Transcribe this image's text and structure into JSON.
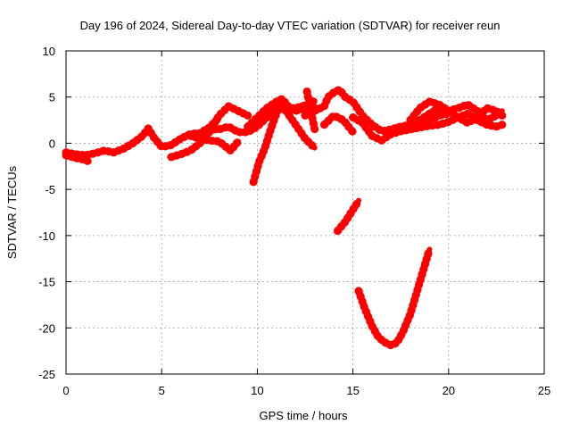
{
  "chart_data": {
    "type": "line",
    "title": "Day 196 of 2024, Sidereal Day-to-day VTEC variation (SDTVAR) for receiver reun",
    "xlabel": "GPS time / hours",
    "ylabel": "SDTVAR / TECUs",
    "xlim": [
      0,
      25
    ],
    "ylim": [
      -25,
      10
    ],
    "xticks": [
      0,
      5,
      10,
      15,
      20,
      25
    ],
    "yticks": [
      -25,
      -20,
      -15,
      -10,
      -5,
      0,
      5,
      10
    ],
    "xtick_labels": [
      "0",
      "5",
      "10",
      "15",
      "20",
      "25"
    ],
    "ytick_labels": [
      "-25",
      "-20",
      "-15",
      "-10",
      "-5",
      "0",
      "5",
      "10"
    ],
    "grid": true,
    "series_color": "#ff0000",
    "series": [
      {
        "name": "s1",
        "x": [
          0,
          0.5,
          1,
          1.5,
          2,
          2.5,
          3,
          3.5,
          4,
          4.3,
          4.6,
          5,
          5.5,
          6,
          6.5,
          7,
          7.5,
          8
        ],
        "y": [
          -1,
          -1.2,
          -1.3,
          -1.1,
          -0.8,
          -1,
          -0.6,
          0,
          0.8,
          1.6,
          0.6,
          -0.4,
          -0.2,
          0.5,
          1,
          1.1,
          1.7,
          2.8
        ]
      },
      {
        "name": "s2",
        "x": [
          0,
          0.5,
          1,
          1.2
        ],
        "y": [
          -1.3,
          -1.6,
          -1.8,
          -2
        ]
      },
      {
        "name": "s3",
        "x": [
          5.5,
          6,
          6.5,
          7,
          7.3,
          7.6,
          8,
          8.5,
          9,
          9.5,
          10,
          10.5,
          11,
          11.5,
          12,
          12.5,
          13
        ],
        "y": [
          -1.5,
          -1.2,
          -0.8,
          0,
          0.8,
          1.5,
          1.5,
          1.8,
          1.2,
          1.2,
          1.8,
          2.8,
          4.2,
          4,
          3.5,
          3.8,
          4
        ]
      },
      {
        "name": "s4",
        "x": [
          7.5,
          8,
          8.5,
          9,
          9.5
        ],
        "y": [
          1.2,
          3,
          4,
          3.5,
          3
        ]
      },
      {
        "name": "s5",
        "x": [
          6.5,
          7,
          7.5,
          8,
          8.3,
          8.6,
          9
        ],
        "y": [
          0.8,
          0.5,
          0.3,
          0.2,
          -0.3,
          -0.8,
          0.2
        ]
      },
      {
        "name": "s6",
        "x": [
          9.5,
          10,
          10.5,
          11,
          11.3,
          11.7,
          12,
          12.5,
          13
        ],
        "y": [
          1.8,
          2.8,
          3.8,
          4.5,
          4.8,
          3.8,
          3.8,
          4.1,
          4.6
        ]
      },
      {
        "name": "s7",
        "x": [
          9.8,
          10.1,
          10.4,
          10.7,
          11,
          11.3,
          11.6
        ],
        "y": [
          -4.2,
          -2,
          -0.5,
          1.5,
          3.2,
          4.8,
          3.5
        ]
      },
      {
        "name": "s8",
        "x": [
          11,
          11.5,
          12,
          12.5,
          13
        ],
        "y": [
          4,
          3.5,
          2,
          0.5,
          -0.5
        ]
      },
      {
        "name": "s9",
        "x": [
          12.5,
          13,
          13.5,
          13.7,
          14,
          14.3,
          14.6,
          15,
          15.5,
          16,
          16.5,
          17,
          17.5,
          18,
          18.5,
          19,
          19.5,
          20
        ],
        "y": [
          3,
          3.5,
          4,
          5,
          5.5,
          5.8,
          5,
          4.5,
          3,
          2,
          1.3,
          1.5,
          1.8,
          2,
          2.2,
          2.5,
          3,
          3.2
        ]
      },
      {
        "name": "s10",
        "x": [
          12.6,
          12.8,
          13
        ],
        "y": [
          5.6,
          3.5,
          1.5
        ]
      },
      {
        "name": "s11",
        "x": [
          13.5,
          14,
          14.5,
          15
        ],
        "y": [
          2,
          3,
          2.5,
          1.2
        ]
      },
      {
        "name": "s12",
        "x": [
          15,
          15.5,
          16,
          16.5,
          17,
          17.5,
          18,
          18.5,
          19,
          19.5,
          20,
          20.5,
          21,
          21.5,
          22,
          22.5,
          22.8
        ],
        "y": [
          2.8,
          2.2,
          0.8,
          0.3,
          1,
          1.3,
          1.5,
          1.7,
          1.9,
          2,
          2.3,
          2.8,
          3.2,
          2.5,
          2,
          1.8,
          2
        ]
      },
      {
        "name": "s13",
        "x": [
          18,
          18.5,
          19,
          19.5,
          20,
          20.5,
          21,
          21.5,
          22,
          22.5,
          22.8
        ],
        "y": [
          2.5,
          3.8,
          4.5,
          4.2,
          3.5,
          3.8,
          4.2,
          3.5,
          2.5,
          3,
          3.5
        ]
      },
      {
        "name": "s14",
        "x": [
          18.5,
          19,
          19.5,
          20,
          20.5,
          21,
          21.5,
          22,
          22.5,
          22.8
        ],
        "y": [
          2.5,
          3.2,
          3.8,
          3.5,
          2.8,
          2.2,
          2.8,
          3.8,
          3.5,
          3
        ]
      },
      {
        "name": "s15",
        "x": [
          14.2,
          14.6,
          15,
          15.3
        ],
        "y": [
          -9.5,
          -8.5,
          -7.2,
          -6.2
        ]
      },
      {
        "name": "s16",
        "x": [
          15.3,
          15.6,
          16,
          16.3,
          16.6,
          17,
          17.3,
          17.6,
          18,
          18.5,
          19
        ],
        "y": [
          -16,
          -17.8,
          -19.8,
          -20.9,
          -21.5,
          -21.9,
          -21.6,
          -20.5,
          -18.5,
          -15,
          -11.5
        ]
      }
    ]
  }
}
